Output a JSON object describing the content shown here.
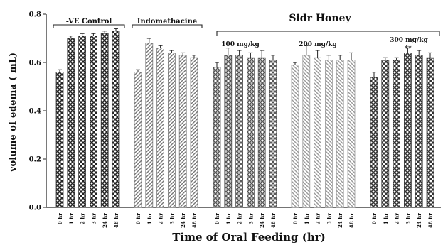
{
  "chart_data": {
    "type": "bar",
    "ylabel": "volume of edema ( mL)",
    "xlabel": "Time of Oral Feeding (hr)",
    "ylim": [
      0,
      0.8
    ],
    "yticks": [
      "0.0",
      "0.2",
      "0.4",
      "0.6",
      "0.8"
    ],
    "categories": [
      "0 hr",
      "1 hr",
      "2 hr",
      "3 hr",
      "24 hr",
      "48 hr"
    ],
    "group_labels": [
      "-VE Control",
      "Indomethacine",
      "Sidr Honey"
    ],
    "subgroup_labels": [
      "100 mg/kg",
      "200 mg/kg",
      "300 mg/kg"
    ],
    "significance_marks": [
      "**"
    ],
    "series": [
      {
        "values": [
          0.56,
          0.7,
          0.71,
          0.71,
          0.72,
          0.73
        ],
        "errors": [
          0.01,
          0.01,
          0.01,
          0.01,
          0.01,
          0.01
        ]
      },
      {
        "values": [
          0.56,
          0.68,
          0.66,
          0.64,
          0.63,
          0.62
        ],
        "errors": [
          0.01,
          0.02,
          0.01,
          0.01,
          0.01,
          0.01
        ]
      },
      {
        "values": [
          0.58,
          0.63,
          0.63,
          0.62,
          0.62,
          0.61
        ],
        "errors": [
          0.02,
          0.03,
          0.02,
          0.02,
          0.03,
          0.02
        ]
      },
      {
        "values": [
          0.59,
          0.63,
          0.62,
          0.61,
          0.61,
          0.61
        ],
        "errors": [
          0.01,
          0.04,
          0.03,
          0.02,
          0.02,
          0.03
        ]
      },
      {
        "values": [
          0.54,
          0.61,
          0.61,
          0.64,
          0.63,
          0.62
        ],
        "errors": [
          0.02,
          0.01,
          0.01,
          0.02,
          0.02,
          0.02
        ]
      }
    ],
    "colors": [
      "#3a3a3a",
      "#7a7a7a",
      "#555555",
      "#9a9a9a",
      "#3a3a3a"
    ]
  }
}
